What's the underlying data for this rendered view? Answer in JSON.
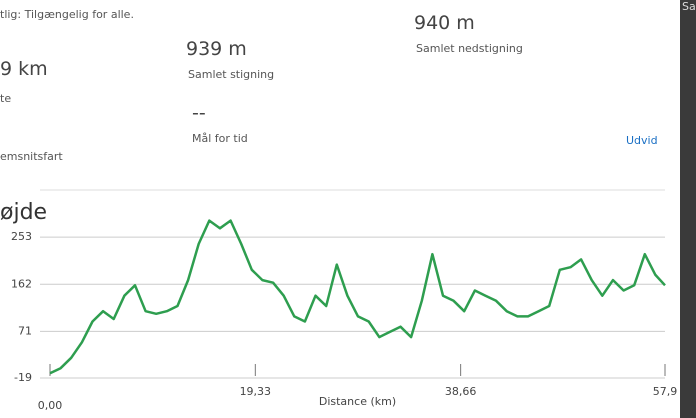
{
  "header": {
    "privacy": "tlig: Tilgængelig for alle.",
    "corner": "Sa"
  },
  "stats": [
    {
      "value": "9 km",
      "label": "te"
    },
    {
      "value": "939 m",
      "label": "Samlet stigning"
    },
    {
      "value": "940 m",
      "label": "Samlet nedstigning"
    },
    {
      "value": "--",
      "label": "Mål for tid"
    },
    {
      "value": "",
      "label": "emsnitsfart"
    }
  ],
  "expand": "Udvid",
  "chart_data": {
    "type": "line",
    "title": "øjde",
    "xlabel": "Distance (km)",
    "color": "#2e9e4f",
    "grid": true,
    "x": [
      0,
      1,
      2,
      3,
      4,
      5,
      6,
      7,
      8,
      9,
      10,
      11,
      12,
      13,
      14,
      15,
      16,
      17,
      18,
      19,
      20,
      21,
      22,
      23,
      24,
      25,
      26,
      27,
      28,
      29,
      30,
      31,
      32,
      33,
      34,
      35,
      36,
      37,
      38,
      39,
      40,
      41,
      42,
      43,
      44,
      45,
      46,
      47,
      48,
      49,
      50,
      51,
      52,
      53,
      54,
      55,
      56,
      57,
      57.9
    ],
    "values": [
      -10,
      0,
      20,
      50,
      90,
      110,
      95,
      140,
      160,
      110,
      105,
      110,
      120,
      170,
      240,
      285,
      270,
      285,
      240,
      190,
      170,
      165,
      140,
      100,
      90,
      140,
      120,
      200,
      140,
      100,
      90,
      60,
      70,
      80,
      60,
      130,
      220,
      140,
      130,
      110,
      150,
      140,
      130,
      110,
      100,
      100,
      110,
      120,
      190,
      195,
      210,
      170,
      140,
      170,
      150,
      160,
      220,
      180,
      160
    ],
    "xlim": [
      0,
      57.9
    ],
    "xticks": [
      {
        "value": 0,
        "label": "0,00"
      },
      {
        "value": 19.33,
        "label": "19,33"
      },
      {
        "value": 38.66,
        "label": "38,66"
      },
      {
        "value": 57.9,
        "label": "57,9"
      }
    ],
    "ylim": [
      -19,
      344
    ],
    "yticks": [
      -19,
      71,
      162,
      253
    ]
  }
}
